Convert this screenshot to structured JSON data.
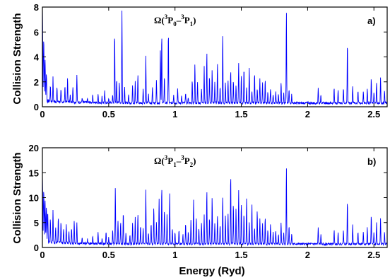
{
  "chart_data": [
    {
      "type": "line",
      "panel_label": "a)",
      "title_parts": {
        "omega": "Ω(",
        "s1": "3",
        "t1": "P",
        "b1": "0",
        "dash": "–",
        "s2": "3",
        "t2": "P",
        "b2": "1",
        "close": ")"
      },
      "ylabel": "Collision Strength",
      "xlabel": "",
      "xlim": [
        0,
        2.6
      ],
      "ylim": [
        0,
        8
      ],
      "xticks": [
        0,
        0.5,
        1,
        1.5,
        2,
        2.5
      ],
      "yticks": [
        0,
        2,
        4,
        6,
        8
      ],
      "color": "#0000ff",
      "background": 0.3,
      "edge_peaks": [
        [
          0.0,
          8.0
        ],
        [
          0.01,
          5.4
        ],
        [
          0.02,
          3.8
        ],
        [
          0.03,
          2.6
        ]
      ],
      "peaks": [
        [
          0.06,
          1.6
        ],
        [
          0.08,
          2.2
        ],
        [
          0.11,
          1.4
        ],
        [
          0.14,
          1.2
        ],
        [
          0.17,
          1.6
        ],
        [
          0.19,
          2.2
        ],
        [
          0.21,
          1.0
        ],
        [
          0.23,
          1.6
        ],
        [
          0.26,
          2.5
        ],
        [
          0.3,
          0.7
        ],
        [
          0.34,
          0.6
        ],
        [
          0.38,
          0.9
        ],
        [
          0.42,
          1.0
        ],
        [
          0.45,
          0.8
        ],
        [
          0.47,
          1.2
        ],
        [
          0.5,
          0.6
        ],
        [
          0.53,
          0.9
        ],
        [
          0.545,
          6.0
        ],
        [
          0.56,
          2.3
        ],
        [
          0.58,
          2.0
        ],
        [
          0.6,
          7.8
        ],
        [
          0.62,
          1.5
        ],
        [
          0.65,
          1.0
        ],
        [
          0.68,
          1.8
        ],
        [
          0.7,
          2.0
        ],
        [
          0.72,
          2.6
        ],
        [
          0.76,
          1.5
        ],
        [
          0.78,
          4.0
        ],
        [
          0.8,
          1.0
        ],
        [
          0.83,
          1.6
        ],
        [
          0.86,
          2.2
        ],
        [
          0.89,
          4.6
        ],
        [
          0.9,
          6.0
        ],
        [
          0.92,
          2.5
        ],
        [
          0.95,
          6.2
        ],
        [
          0.99,
          1.0
        ],
        [
          1.02,
          1.5
        ],
        [
          1.05,
          0.9
        ],
        [
          1.08,
          1.2
        ],
        [
          1.1,
          0.8
        ],
        [
          1.13,
          2.2
        ],
        [
          1.15,
          3.5
        ],
        [
          1.17,
          2.0
        ],
        [
          1.2,
          1.5
        ],
        [
          1.22,
          3.2
        ],
        [
          1.24,
          4.4
        ],
        [
          1.26,
          2.5
        ],
        [
          1.28,
          3.0
        ],
        [
          1.3,
          2.0
        ],
        [
          1.32,
          3.6
        ],
        [
          1.34,
          1.6
        ],
        [
          1.36,
          6.0
        ],
        [
          1.38,
          2.0
        ],
        [
          1.4,
          2.2
        ],
        [
          1.42,
          3.0
        ],
        [
          1.44,
          2.2
        ],
        [
          1.46,
          1.8
        ],
        [
          1.48,
          3.6
        ],
        [
          1.5,
          2.5
        ],
        [
          1.52,
          3.1
        ],
        [
          1.54,
          1.5
        ],
        [
          1.56,
          3.2
        ],
        [
          1.58,
          1.3
        ],
        [
          1.6,
          2.7
        ],
        [
          1.62,
          1.5
        ],
        [
          1.64,
          2.2
        ],
        [
          1.66,
          2.0
        ],
        [
          1.68,
          2.2
        ],
        [
          1.7,
          1.2
        ],
        [
          1.72,
          1.5
        ],
        [
          1.74,
          1.0
        ],
        [
          1.76,
          1.2
        ],
        [
          1.78,
          1.0
        ],
        [
          1.8,
          2.0
        ],
        [
          1.82,
          1.2
        ],
        [
          1.84,
          7.7
        ],
        [
          1.86,
          1.4
        ],
        [
          1.88,
          1.0
        ],
        [
          2.08,
          1.5
        ],
        [
          2.1,
          1.0
        ],
        [
          2.2,
          1.5
        ],
        [
          2.23,
          1.3
        ],
        [
          2.27,
          1.5
        ],
        [
          2.3,
          5.3
        ],
        [
          2.34,
          1.7
        ],
        [
          2.38,
          1.3
        ],
        [
          2.42,
          1.2
        ],
        [
          2.45,
          1.5
        ],
        [
          2.48,
          2.3
        ],
        [
          2.5,
          1.2
        ],
        [
          2.52,
          2.0
        ],
        [
          2.55,
          2.4
        ],
        [
          2.58,
          1.3
        ]
      ]
    },
    {
      "type": "line",
      "panel_label": "b)",
      "title_parts": {
        "omega": "Ω(",
        "s1": "3",
        "t1": "P",
        "b1": "1",
        "dash": "–",
        "s2": "3",
        "t2": "P",
        "b2": "2",
        "close": ")"
      },
      "ylabel": "Collision Strength",
      "xlabel": "Energy (Ryd)",
      "xlim": [
        0,
        2.6
      ],
      "ylim": [
        0,
        20
      ],
      "xticks": [
        0,
        0.5,
        1,
        1.5,
        2,
        2.5
      ],
      "yticks": [
        0,
        5,
        10,
        15,
        20
      ],
      "color": "#0000ff",
      "background": 0.7,
      "edge_peaks": [
        [
          0.0,
          14.5
        ],
        [
          0.01,
          11.5
        ],
        [
          0.02,
          9.5
        ],
        [
          0.03,
          8.0
        ],
        [
          0.04,
          7.0
        ]
      ],
      "peaks": [
        [
          0.06,
          5.5
        ],
        [
          0.08,
          7.5
        ],
        [
          0.1,
          4.0
        ],
        [
          0.12,
          6.0
        ],
        [
          0.14,
          5.0
        ],
        [
          0.16,
          3.5
        ],
        [
          0.18,
          4.5
        ],
        [
          0.2,
          3.0
        ],
        [
          0.22,
          4.0
        ],
        [
          0.24,
          5.5
        ],
        [
          0.26,
          4.8
        ],
        [
          0.3,
          1.8
        ],
        [
          0.34,
          1.5
        ],
        [
          0.38,
          2.0
        ],
        [
          0.42,
          3.0
        ],
        [
          0.45,
          1.8
        ],
        [
          0.48,
          3.0
        ],
        [
          0.5,
          2.0
        ],
        [
          0.53,
          3.5
        ],
        [
          0.55,
          12.0
        ],
        [
          0.57,
          5.5
        ],
        [
          0.59,
          5.0
        ],
        [
          0.61,
          7.0
        ],
        [
          0.63,
          3.0
        ],
        [
          0.66,
          2.5
        ],
        [
          0.68,
          5.0
        ],
        [
          0.7,
          6.0
        ],
        [
          0.72,
          7.0
        ],
        [
          0.74,
          4.5
        ],
        [
          0.76,
          4.0
        ],
        [
          0.78,
          11.5
        ],
        [
          0.8,
          3.0
        ],
        [
          0.82,
          5.0
        ],
        [
          0.84,
          8.0
        ],
        [
          0.86,
          5.0
        ],
        [
          0.88,
          10.0
        ],
        [
          0.9,
          12.3
        ],
        [
          0.92,
          7.5
        ],
        [
          0.94,
          6.5
        ],
        [
          0.96,
          11.0
        ],
        [
          0.98,
          4.0
        ],
        [
          1.0,
          3.0
        ],
        [
          1.03,
          3.5
        ],
        [
          1.06,
          2.5
        ],
        [
          1.08,
          5.0
        ],
        [
          1.1,
          3.0
        ],
        [
          1.12,
          5.5
        ],
        [
          1.14,
          9.5
        ],
        [
          1.16,
          6.0
        ],
        [
          1.18,
          4.0
        ],
        [
          1.2,
          5.0
        ],
        [
          1.22,
          6.5
        ],
        [
          1.24,
          11.5
        ],
        [
          1.26,
          6.0
        ],
        [
          1.28,
          10.3
        ],
        [
          1.3,
          5.0
        ],
        [
          1.32,
          6.5
        ],
        [
          1.34,
          4.5
        ],
        [
          1.36,
          10.3
        ],
        [
          1.38,
          6.5
        ],
        [
          1.4,
          7.0
        ],
        [
          1.42,
          15.0
        ],
        [
          1.44,
          9.0
        ],
        [
          1.46,
          8.0
        ],
        [
          1.48,
          11.5
        ],
        [
          1.5,
          9.0
        ],
        [
          1.52,
          7.0
        ],
        [
          1.54,
          10.0
        ],
        [
          1.56,
          5.0
        ],
        [
          1.58,
          9.0
        ],
        [
          1.6,
          4.0
        ],
        [
          1.62,
          7.5
        ],
        [
          1.64,
          6.0
        ],
        [
          1.66,
          5.0
        ],
        [
          1.68,
          6.0
        ],
        [
          1.7,
          3.5
        ],
        [
          1.72,
          4.5
        ],
        [
          1.74,
          3.0
        ],
        [
          1.76,
          3.5
        ],
        [
          1.78,
          2.5
        ],
        [
          1.8,
          5.0
        ],
        [
          1.82,
          3.0
        ],
        [
          1.84,
          16.2
        ],
        [
          1.86,
          4.5
        ],
        [
          1.88,
          3.0
        ],
        [
          2.08,
          4.0
        ],
        [
          2.1,
          2.5
        ],
        [
          2.2,
          3.5
        ],
        [
          2.23,
          3.0
        ],
        [
          2.27,
          3.5
        ],
        [
          2.3,
          9.5
        ],
        [
          2.34,
          4.5
        ],
        [
          2.38,
          3.0
        ],
        [
          2.42,
          3.0
        ],
        [
          2.45,
          4.0
        ],
        [
          2.48,
          6.5
        ],
        [
          2.5,
          3.0
        ],
        [
          2.52,
          5.0
        ],
        [
          2.55,
          6.0
        ],
        [
          2.58,
          3.0
        ]
      ]
    }
  ]
}
